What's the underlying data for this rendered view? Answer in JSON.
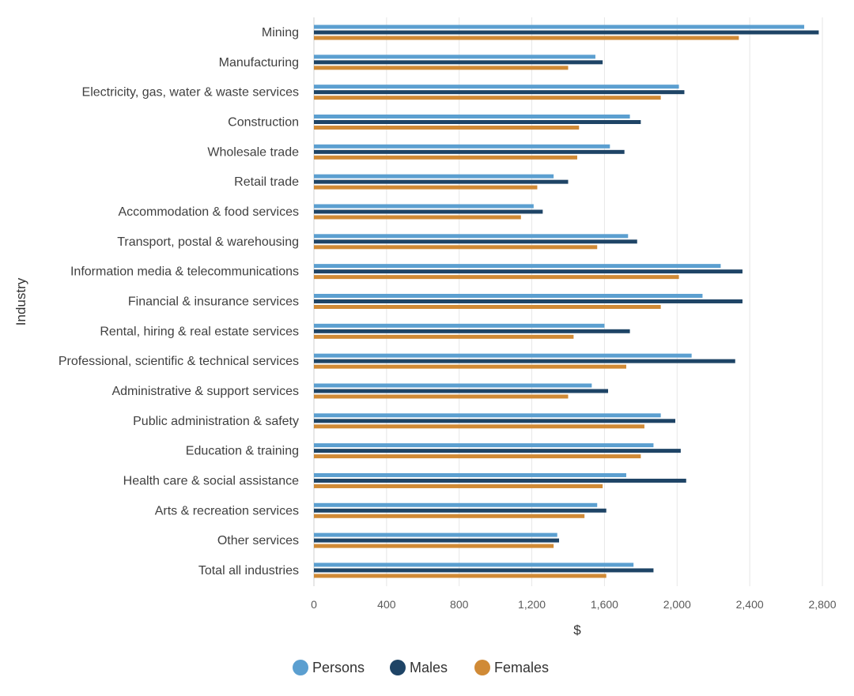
{
  "chart_data": {
    "type": "bar",
    "orientation": "horizontal",
    "xlabel": "$",
    "ylabel": "Industry",
    "xlim": [
      0,
      2800
    ],
    "xticks": [
      0,
      400,
      800,
      1200,
      1600,
      2000,
      2400,
      2800
    ],
    "xtick_labels": [
      "0",
      "400",
      "800",
      "1,200",
      "1,600",
      "2,000",
      "2,400",
      "2,800"
    ],
    "grid": "vertical",
    "legend_position": "bottom",
    "categories": [
      "Mining",
      "Manufacturing",
      "Electricity, gas, water & waste services",
      "Construction",
      "Wholesale trade",
      "Retail trade",
      "Accommodation & food services",
      "Transport, postal & warehousing",
      "Information media & telecommunications",
      "Financial & insurance services",
      "Rental, hiring & real estate services",
      "Professional, scientific & technical services",
      "Administrative & support services",
      "Public administration & safety",
      "Education & training",
      "Health care & social assistance",
      "Arts & recreation services",
      "Other services",
      "Total all industries"
    ],
    "series": [
      {
        "name": "Persons",
        "color": "#5b9fd0",
        "values": [
          2700,
          1550,
          2010,
          1740,
          1630,
          1320,
          1210,
          1730,
          2240,
          2140,
          1600,
          2080,
          1530,
          1910,
          1870,
          1720,
          1560,
          1340,
          1760
        ]
      },
      {
        "name": "Males",
        "color": "#1e4466",
        "values": [
          2780,
          1590,
          2040,
          1800,
          1710,
          1400,
          1260,
          1780,
          2360,
          2360,
          1740,
          2320,
          1620,
          1990,
          2020,
          2050,
          1610,
          1350,
          1870
        ]
      },
      {
        "name": "Females",
        "color": "#d08a36",
        "values": [
          2340,
          1400,
          1910,
          1460,
          1450,
          1230,
          1140,
          1560,
          2010,
          1910,
          1430,
          1720,
          1400,
          1820,
          1800,
          1590,
          1490,
          1320,
          1610
        ]
      }
    ]
  }
}
